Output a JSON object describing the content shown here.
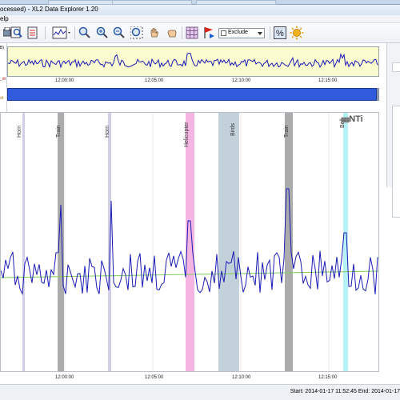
{
  "window": {
    "title": "ocessed) - XL2 Data Explorer 1.20"
  },
  "menubar": {
    "fragment": "elp"
  },
  "toolbar": {
    "exclude_select": "Exclude"
  },
  "left_panel": {
    "items": [
      "B)",
      "_dt",
      "dt"
    ]
  },
  "overview": {
    "time_labels": [
      "12:00:00",
      "12:05:00",
      "12:10:00",
      "12:15:00"
    ]
  },
  "main": {
    "events": [
      {
        "label": "Horn",
        "color": "#c9c6e6"
      },
      {
        "label": "Train",
        "color": "#9e9e9e"
      },
      {
        "label": "Horn",
        "color": "#c9c6e6"
      },
      {
        "label": "Helicopter",
        "color": "#f2a8de"
      },
      {
        "label": "Birds",
        "color": "#b7c9d4"
      },
      {
        "label": "Train",
        "color": "#9e9e9e"
      },
      {
        "label": "Bell",
        "color": "#a9eef6"
      }
    ],
    "time_labels": [
      "12:00:00",
      "12:05:00",
      "12:10:00",
      "12:15:00"
    ],
    "logo": "NTi",
    "colors": {
      "trace": "#1b1bb5",
      "trend": "#7fcf5a"
    }
  },
  "status": {
    "text": "Start: 2014-01-17 11:52:45 End: 2014-01-17"
  }
}
